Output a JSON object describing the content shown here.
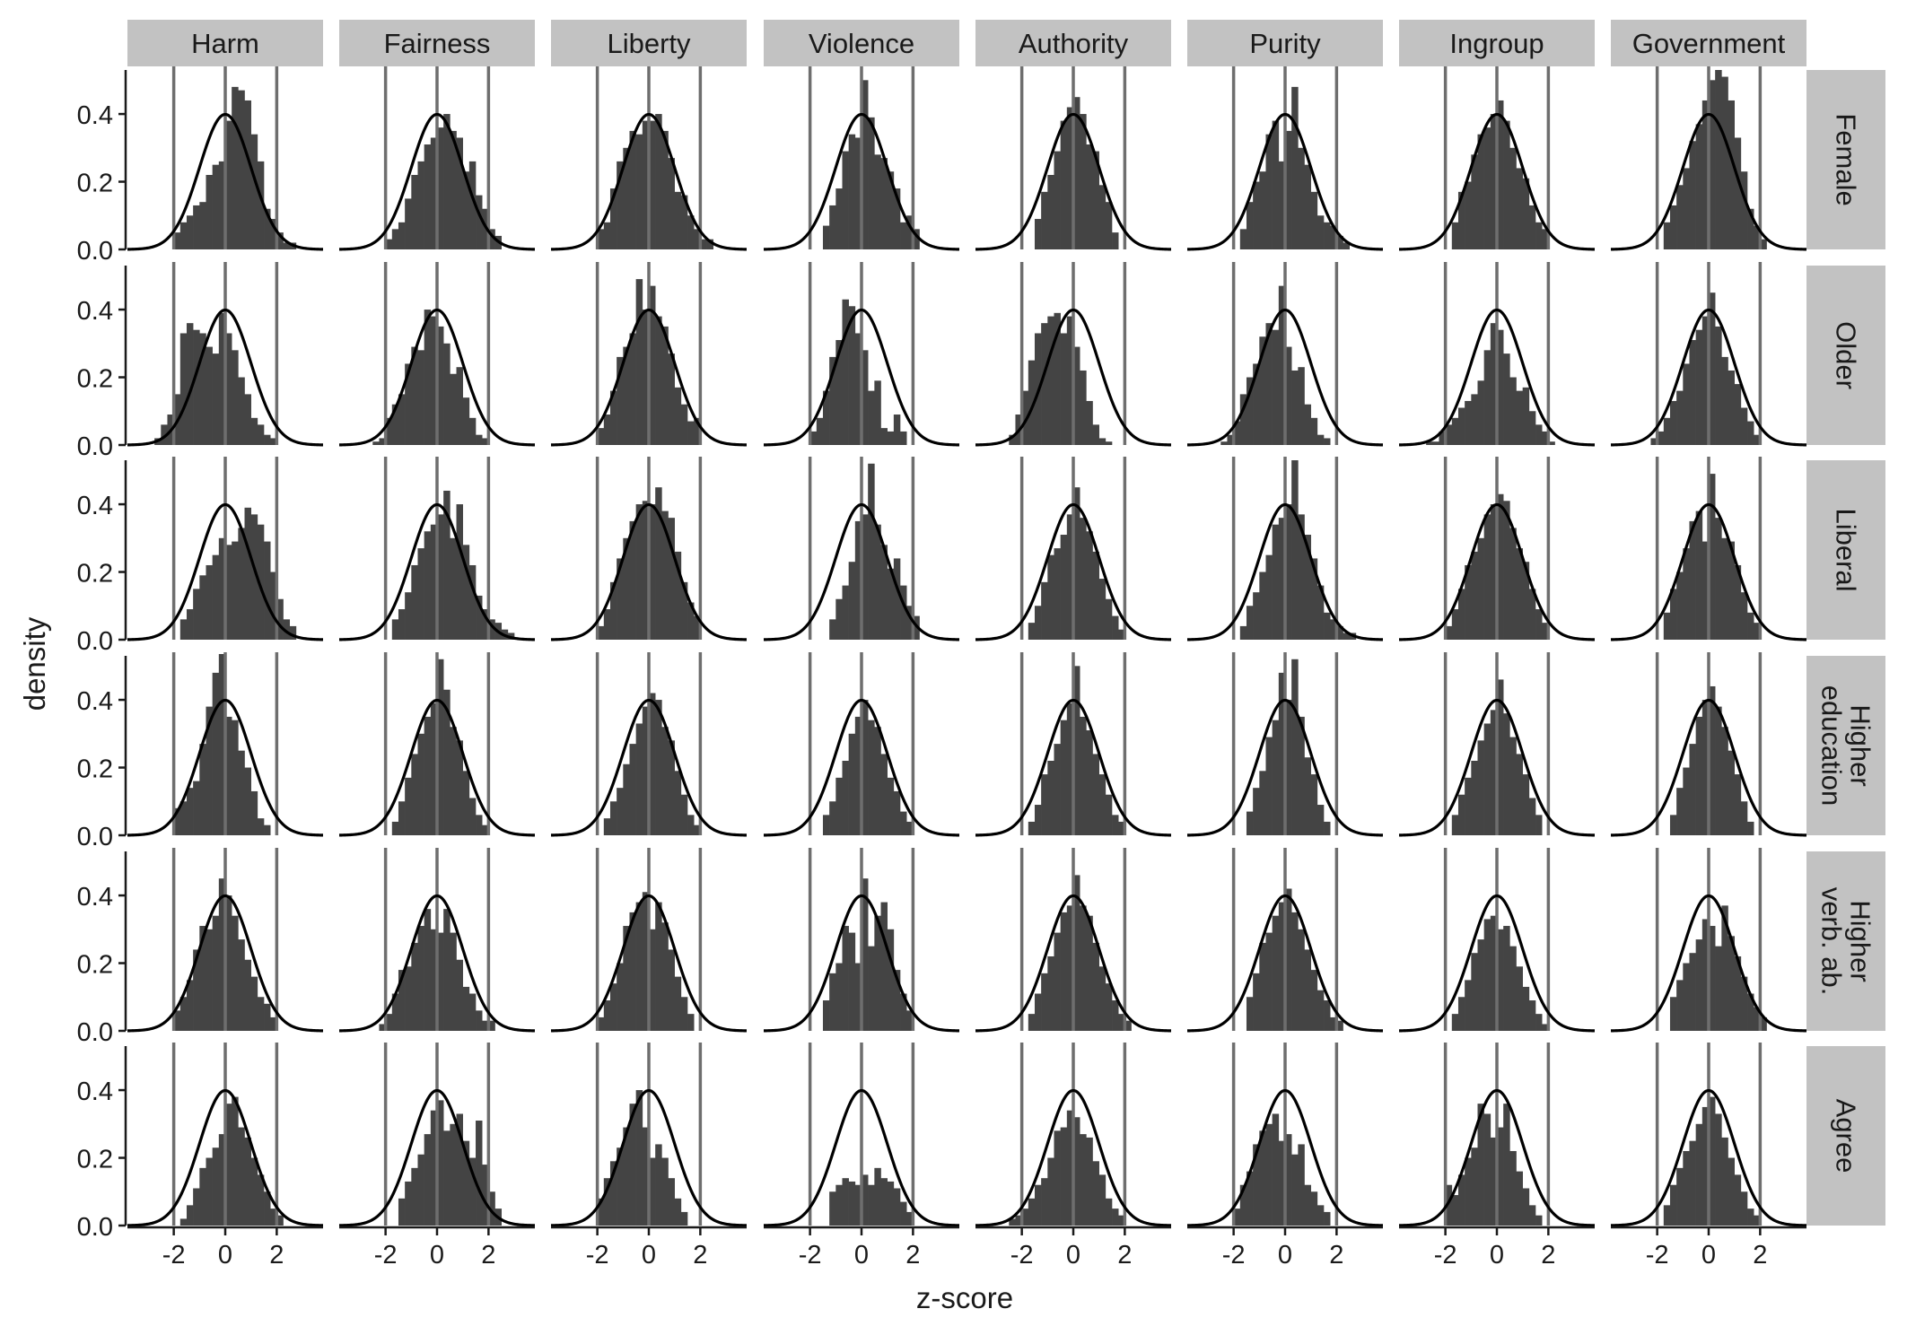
{
  "chart_data": {
    "type": "histogram",
    "xlabel": "z-score",
    "ylabel": "density",
    "columns": [
      "Harm",
      "Fairness",
      "Liberty",
      "Violence",
      "Authority",
      "Purity",
      "Ingroup",
      "Government"
    ],
    "rows": [
      {
        "label": [
          "Female"
        ]
      },
      {
        "label": [
          "Older"
        ]
      },
      {
        "label": [
          "Liberal"
        ]
      },
      {
        "label": [
          "Higher",
          "education"
        ]
      },
      {
        "label": [
          "Higher",
          "verb. ab."
        ]
      },
      {
        "label": [
          "Agree"
        ]
      }
    ],
    "x_range": [
      -3.8,
      3.8
    ],
    "y_range": [
      0,
      0.53
    ],
    "x_ticks": [
      -2,
      0,
      2
    ],
    "x_tick_labels": [
      "-2",
      "0",
      "2"
    ],
    "y_ticks": [
      0,
      0.2,
      0.4
    ],
    "y_tick_labels": [
      "0.0",
      "0.2",
      "0.4"
    ],
    "reference_lines_x": [
      -2,
      0,
      2
    ],
    "overlay": "standard normal density",
    "bin_width": 0.25,
    "hist_color": "#444444",
    "ref_line_color": "#6e6e6e",
    "strip_color": "#c2c2c2",
    "panels": [
      [
        {
          "bins_start": -2.0,
          "values": [
            0.05,
            0.08,
            0.1,
            0.13,
            0.14,
            0.22,
            0.25,
            0.26,
            0.38,
            0.48,
            0.47,
            0.44,
            0.34,
            0.26,
            0.12,
            0.09,
            0.05,
            0.02,
            0.02
          ]
        },
        {
          "bins_start": -2.0,
          "values": [
            0.03,
            0.06,
            0.08,
            0.15,
            0.22,
            0.26,
            0.31,
            0.33,
            0.36,
            0.4,
            0.35,
            0.33,
            0.23,
            0.26,
            0.16,
            0.12,
            0.06,
            0.04
          ]
        },
        {
          "bins_start": -2.0,
          "values": [
            0.06,
            0.08,
            0.18,
            0.26,
            0.3,
            0.35,
            0.34,
            0.38,
            0.38,
            0.4,
            0.35,
            0.27,
            0.17,
            0.16,
            0.1,
            0.06,
            0.03,
            0.03
          ]
        },
        {
          "bins_start": -1.5,
          "values": [
            0.07,
            0.13,
            0.18,
            0.29,
            0.34,
            0.33,
            0.5,
            0.39,
            0.28,
            0.27,
            0.23,
            0.18,
            0.08,
            0.1,
            0.06
          ]
        },
        {
          "bins_start": -1.5,
          "values": [
            0.09,
            0.17,
            0.22,
            0.29,
            0.38,
            0.42,
            0.45,
            0.4,
            0.31,
            0.29,
            0.19,
            0.14,
            0.05
          ]
        },
        {
          "bins_start": -1.75,
          "values": [
            0.06,
            0.14,
            0.2,
            0.23,
            0.34,
            0.38,
            0.26,
            0.35,
            0.48,
            0.3,
            0.25,
            0.17,
            0.1,
            0.08,
            0.07,
            0.04,
            0.02
          ]
        },
        {
          "bins_start": -1.75,
          "values": [
            0.08,
            0.17,
            0.2,
            0.28,
            0.34,
            0.36,
            0.4,
            0.44,
            0.38,
            0.3,
            0.24,
            0.21,
            0.13,
            0.08,
            0.06
          ]
        },
        {
          "bins_start": -1.75,
          "values": [
            0.08,
            0.13,
            0.19,
            0.24,
            0.32,
            0.37,
            0.44,
            0.5,
            0.53,
            0.51,
            0.44,
            0.33,
            0.23,
            0.12,
            0.07,
            0.03
          ]
        }
      ],
      [
        {
          "bins_start": -2.75,
          "values": [
            0.02,
            0.06,
            0.09,
            0.15,
            0.33,
            0.36,
            0.34,
            0.33,
            0.29,
            0.27,
            0.39,
            0.33,
            0.28,
            0.2,
            0.15,
            0.08,
            0.06,
            0.03,
            0.02
          ]
        },
        {
          "bins_start": -2.5,
          "values": [
            0.01,
            0.02,
            0.08,
            0.12,
            0.15,
            0.24,
            0.29,
            0.28,
            0.4,
            0.38,
            0.35,
            0.3,
            0.21,
            0.23,
            0.14,
            0.08,
            0.03,
            0.02
          ]
        },
        {
          "bins_start": -2.0,
          "values": [
            0.05,
            0.09,
            0.16,
            0.26,
            0.29,
            0.33,
            0.49,
            0.4,
            0.47,
            0.38,
            0.35,
            0.27,
            0.17,
            0.12,
            0.07,
            0.08
          ]
        },
        {
          "bins_start": -2.0,
          "values": [
            0.04,
            0.08,
            0.16,
            0.26,
            0.31,
            0.43,
            0.41,
            0.33,
            0.28,
            0.16,
            0.19,
            0.05,
            0.04,
            0.09,
            0.04
          ]
        },
        {
          "bins_start": -2.5,
          "values": [
            0.03,
            0.09,
            0.16,
            0.25,
            0.33,
            0.36,
            0.38,
            0.39,
            0.33,
            0.38,
            0.29,
            0.22,
            0.13,
            0.06,
            0.02,
            0.01
          ]
        },
        {
          "bins_start": -2.5,
          "values": [
            0.01,
            0.03,
            0.07,
            0.15,
            0.2,
            0.24,
            0.32,
            0.36,
            0.34,
            0.47,
            0.29,
            0.22,
            0.23,
            0.12,
            0.08,
            0.03,
            0.02
          ]
        },
        {
          "bins_start": -2.75,
          "values": [
            0.01,
            0.01,
            0.04,
            0.06,
            0.08,
            0.11,
            0.13,
            0.15,
            0.19,
            0.28,
            0.36,
            0.34,
            0.27,
            0.2,
            0.16,
            0.17,
            0.1,
            0.06,
            0.04,
            0.01
          ]
        },
        {
          "bins_start": -2.25,
          "values": [
            0.02,
            0.04,
            0.08,
            0.13,
            0.16,
            0.24,
            0.31,
            0.34,
            0.38,
            0.45,
            0.35,
            0.26,
            0.22,
            0.18,
            0.11,
            0.07,
            0.03
          ]
        }
      ],
      [
        {
          "bins_start": -1.75,
          "values": [
            0.06,
            0.09,
            0.15,
            0.19,
            0.22,
            0.25,
            0.3,
            0.28,
            0.29,
            0.33,
            0.39,
            0.37,
            0.34,
            0.29,
            0.2,
            0.12,
            0.06,
            0.04
          ]
        },
        {
          "bins_start": -1.75,
          "values": [
            0.06,
            0.09,
            0.14,
            0.22,
            0.27,
            0.32,
            0.34,
            0.37,
            0.44,
            0.3,
            0.4,
            0.28,
            0.22,
            0.13,
            0.09,
            0.06,
            0.05,
            0.03,
            0.02
          ]
        },
        {
          "bins_start": -2.0,
          "values": [
            0.04,
            0.09,
            0.17,
            0.24,
            0.3,
            0.35,
            0.4,
            0.41,
            0.4,
            0.45,
            0.38,
            0.36,
            0.26,
            0.17,
            0.11,
            0.07
          ]
        },
        {
          "bins_start": -1.25,
          "values": [
            0.06,
            0.12,
            0.16,
            0.23,
            0.35,
            0.37,
            0.52,
            0.34,
            0.28,
            0.21,
            0.24,
            0.16,
            0.1,
            0.07
          ]
        },
        {
          "bins_start": -1.75,
          "values": [
            0.05,
            0.1,
            0.17,
            0.25,
            0.27,
            0.31,
            0.37,
            0.45,
            0.36,
            0.32,
            0.26,
            0.18,
            0.12,
            0.07,
            0.03
          ]
        },
        {
          "bins_start": -1.75,
          "values": [
            0.04,
            0.1,
            0.14,
            0.2,
            0.25,
            0.34,
            0.36,
            0.4,
            0.53,
            0.37,
            0.31,
            0.24,
            0.16,
            0.08,
            0.06,
            0.04,
            0.02,
            0.02
          ]
        },
        {
          "bins_start": -2.0,
          "values": [
            0.04,
            0.09,
            0.15,
            0.22,
            0.26,
            0.3,
            0.37,
            0.4,
            0.43,
            0.41,
            0.33,
            0.27,
            0.23,
            0.15,
            0.09,
            0.05
          ]
        },
        {
          "bins_start": -1.75,
          "values": [
            0.08,
            0.15,
            0.2,
            0.27,
            0.35,
            0.38,
            0.29,
            0.49,
            0.36,
            0.3,
            0.29,
            0.22,
            0.14,
            0.08,
            0.05
          ]
        }
      ],
      [
        {
          "bins_start": -2.0,
          "values": [
            0.08,
            0.1,
            0.14,
            0.16,
            0.27,
            0.38,
            0.48,
            0.54,
            0.35,
            0.34,
            0.25,
            0.2,
            0.13,
            0.05,
            0.03
          ]
        },
        {
          "bins_start": -1.75,
          "values": [
            0.04,
            0.1,
            0.17,
            0.24,
            0.3,
            0.35,
            0.39,
            0.52,
            0.43,
            0.32,
            0.28,
            0.19,
            0.11,
            0.06,
            0.03
          ]
        },
        {
          "bins_start": -1.75,
          "values": [
            0.05,
            0.1,
            0.14,
            0.21,
            0.27,
            0.33,
            0.38,
            0.42,
            0.4,
            0.32,
            0.28,
            0.19,
            0.12,
            0.06,
            0.03
          ]
        },
        {
          "bins_start": -1.5,
          "values": [
            0.06,
            0.1,
            0.17,
            0.22,
            0.3,
            0.35,
            0.4,
            0.34,
            0.32,
            0.24,
            0.17,
            0.13,
            0.07,
            0.04
          ]
        },
        {
          "bins_start": -1.75,
          "values": [
            0.04,
            0.09,
            0.18,
            0.22,
            0.27,
            0.34,
            0.39,
            0.5,
            0.35,
            0.31,
            0.24,
            0.18,
            0.12,
            0.06,
            0.04
          ]
        },
        {
          "bins_start": -1.5,
          "values": [
            0.07,
            0.14,
            0.19,
            0.29,
            0.34,
            0.48,
            0.4,
            0.52,
            0.35,
            0.23,
            0.18,
            0.09,
            0.04
          ]
        },
        {
          "bins_start": -1.75,
          "values": [
            0.06,
            0.12,
            0.17,
            0.22,
            0.28,
            0.33,
            0.37,
            0.46,
            0.36,
            0.29,
            0.24,
            0.18,
            0.11,
            0.06
          ]
        },
        {
          "bins_start": -1.5,
          "values": [
            0.06,
            0.14,
            0.2,
            0.27,
            0.35,
            0.4,
            0.44,
            0.38,
            0.32,
            0.25,
            0.18,
            0.1,
            0.04
          ]
        }
      ],
      [
        {
          "bins_start": -2.0,
          "values": [
            0.06,
            0.1,
            0.15,
            0.24,
            0.31,
            0.3,
            0.34,
            0.45,
            0.4,
            0.34,
            0.27,
            0.21,
            0.16,
            0.1,
            0.08,
            0.04
          ]
        },
        {
          "bins_start": -2.25,
          "values": [
            0.02,
            0.05,
            0.11,
            0.18,
            0.19,
            0.26,
            0.31,
            0.36,
            0.3,
            0.29,
            0.36,
            0.29,
            0.21,
            0.13,
            0.11,
            0.06,
            0.03,
            0.03
          ]
        },
        {
          "bins_start": -2.0,
          "values": [
            0.04,
            0.09,
            0.14,
            0.2,
            0.31,
            0.35,
            0.38,
            0.41,
            0.3,
            0.38,
            0.32,
            0.24,
            0.16,
            0.1,
            0.05
          ]
        },
        {
          "bins_start": -1.5,
          "values": [
            0.09,
            0.17,
            0.2,
            0.31,
            0.29,
            0.2,
            0.45,
            0.25,
            0.34,
            0.38,
            0.3,
            0.18,
            0.11,
            0.06
          ]
        },
        {
          "bins_start": -1.75,
          "values": [
            0.05,
            0.11,
            0.17,
            0.22,
            0.29,
            0.35,
            0.37,
            0.46,
            0.37,
            0.34,
            0.26,
            0.19,
            0.14,
            0.09,
            0.05,
            0.03
          ]
        },
        {
          "bins_start": -1.5,
          "values": [
            0.1,
            0.17,
            0.26,
            0.29,
            0.34,
            0.38,
            0.42,
            0.35,
            0.3,
            0.24,
            0.18,
            0.12,
            0.09,
            0.04,
            0.03
          ]
        },
        {
          "bins_start": -1.75,
          "values": [
            0.05,
            0.1,
            0.15,
            0.23,
            0.27,
            0.33,
            0.34,
            0.3,
            0.31,
            0.25,
            0.19,
            0.13,
            0.09,
            0.05,
            0.02
          ]
        },
        {
          "bins_start": -1.5,
          "values": [
            0.1,
            0.15,
            0.2,
            0.23,
            0.27,
            0.33,
            0.31,
            0.25,
            0.37,
            0.28,
            0.22,
            0.16,
            0.11,
            0.07,
            0.04
          ]
        }
      ],
      [
        {
          "bins_start": -1.75,
          "values": [
            0.02,
            0.06,
            0.11,
            0.17,
            0.2,
            0.23,
            0.27,
            0.36,
            0.38,
            0.29,
            0.26,
            0.2,
            0.15,
            0.1,
            0.05,
            0.03
          ]
        },
        {
          "bins_start": -1.5,
          "values": [
            0.08,
            0.13,
            0.17,
            0.21,
            0.27,
            0.34,
            0.37,
            0.28,
            0.3,
            0.33,
            0.25,
            0.2,
            0.31,
            0.18,
            0.1,
            0.05
          ]
        },
        {
          "bins_start": -2.0,
          "values": [
            0.08,
            0.14,
            0.19,
            0.23,
            0.29,
            0.36,
            0.4,
            0.29,
            0.2,
            0.24,
            0.2,
            0.14,
            0.08,
            0.04
          ]
        },
        {
          "bins_start": -1.25,
          "values": [
            0.1,
            0.12,
            0.14,
            0.13,
            0.12,
            0.15,
            0.12,
            0.17,
            0.14,
            0.13,
            0.11,
            0.07,
            0.04
          ]
        },
        {
          "bins_start": -2.5,
          "values": [
            0.02,
            0.03,
            0.05,
            0.08,
            0.12,
            0.14,
            0.2,
            0.28,
            0.29,
            0.34,
            0.32,
            0.27,
            0.26,
            0.19,
            0.15,
            0.08,
            0.05,
            0.03
          ]
        },
        {
          "bins_start": -2.0,
          "values": [
            0.05,
            0.12,
            0.16,
            0.24,
            0.28,
            0.3,
            0.33,
            0.25,
            0.27,
            0.21,
            0.24,
            0.12,
            0.1,
            0.06,
            0.04
          ]
        },
        {
          "bins_start": -2.0,
          "values": [
            0.12,
            0.09,
            0.15,
            0.2,
            0.23,
            0.36,
            0.33,
            0.26,
            0.29,
            0.36,
            0.22,
            0.16,
            0.11,
            0.06,
            0.03
          ]
        },
        {
          "bins_start": -1.75,
          "values": [
            0.06,
            0.12,
            0.17,
            0.22,
            0.25,
            0.3,
            0.35,
            0.38,
            0.33,
            0.26,
            0.2,
            0.15,
            0.1,
            0.05,
            0.03
          ]
        }
      ]
    ]
  }
}
